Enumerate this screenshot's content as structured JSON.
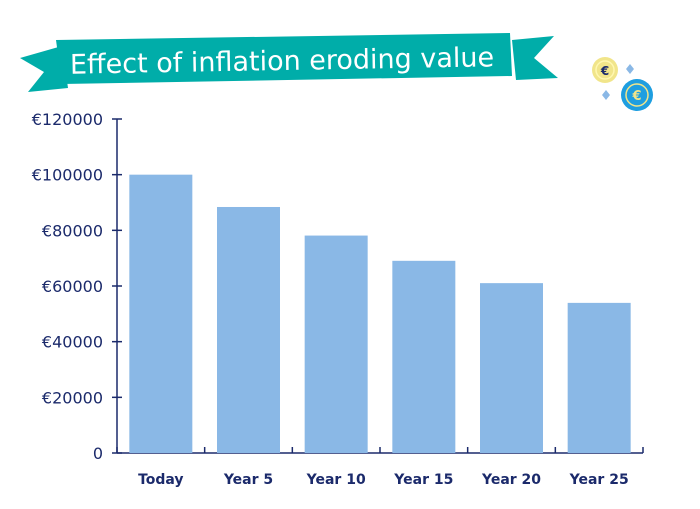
{
  "chart_data": {
    "type": "bar",
    "title": "Effect of inflation eroding value",
    "categories": [
      "Today",
      "Year 5",
      "Year 10",
      "Year 15",
      "Year 20",
      "Year 25"
    ],
    "values": [
      100000,
      88385,
      78120,
      69047,
      61027,
      53939
    ],
    "yticks": [
      "0",
      "€20000",
      "€40000",
      "€60000",
      "€80000",
      "€100000",
      "€120000"
    ],
    "ylim": [
      0,
      120000
    ],
    "xlabel": "",
    "ylabel": "",
    "grid": false,
    "colors": {
      "bar": "#8ab8e6",
      "banner": "#00ada9",
      "axis": "#1b2a6b",
      "coin_gold": "#f1e58a",
      "coin_blue": "#1e9ee0"
    }
  }
}
